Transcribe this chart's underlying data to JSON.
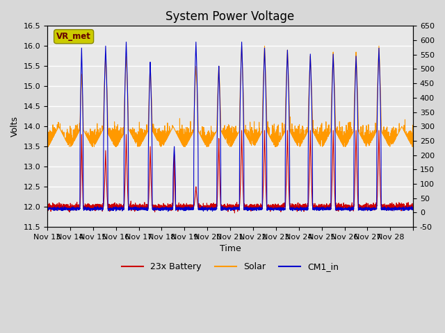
{
  "title": "System Power Voltage",
  "xlabel": "Time",
  "ylabel": "Volts",
  "ylim_left": [
    11.5,
    16.5
  ],
  "ylim_right": [
    -50,
    650
  ],
  "yticks_left": [
    11.5,
    12.0,
    12.5,
    13.0,
    13.5,
    14.0,
    14.5,
    15.0,
    15.5,
    16.0,
    16.5
  ],
  "yticks_right": [
    -50,
    0,
    50,
    100,
    150,
    200,
    250,
    300,
    350,
    400,
    450,
    500,
    550,
    600,
    650
  ],
  "xtick_positions": [
    0,
    1,
    2,
    3,
    4,
    5,
    6,
    7,
    8,
    9,
    10,
    11,
    12,
    13,
    14,
    15,
    16
  ],
  "xtick_labels": [
    "Nov 13",
    "Nov 14",
    "Nov 15",
    "Nov 16",
    "Nov 17",
    "Nov 18",
    "Nov 19",
    "Nov 20",
    "Nov 21",
    "Nov 22",
    "Nov 23",
    "Nov 24",
    "Nov 25",
    "Nov 26",
    "Nov 27",
    "Nov 28",
    ""
  ],
  "bg_color": "#d8d8d8",
  "plot_bg_color": "#e8e8e8",
  "legend_colors": [
    "#cc0000",
    "#ff9900",
    "#0000cc"
  ],
  "legend_entries": [
    "23x Battery",
    "Solar",
    "CM1_in"
  ],
  "vr_met_box_color": "#cccc00",
  "vr_met_text_color": "#660000",
  "title_fontsize": 12,
  "label_fontsize": 9,
  "tick_fontsize": 8,
  "n_days": 16,
  "ppd": 200,
  "spike_days": [
    [
      1,
      0.5,
      13.8,
      15.95,
      15.3,
      0.15
    ],
    [
      2,
      0.55,
      13.4,
      16.0,
      15.8,
      0.2
    ],
    [
      3,
      0.45,
      13.8,
      16.1,
      15.75,
      0.2
    ],
    [
      4,
      0.5,
      13.5,
      15.6,
      15.5,
      0.18
    ],
    [
      5,
      0.55,
      13.3,
      13.5,
      13.5,
      0.12
    ],
    [
      6,
      0.5,
      12.5,
      16.1,
      15.5,
      0.2
    ],
    [
      7,
      0.5,
      13.7,
      15.5,
      15.5,
      0.18
    ],
    [
      8,
      0.5,
      13.9,
      16.1,
      16.0,
      0.2
    ],
    [
      9,
      0.5,
      13.9,
      15.95,
      16.0,
      0.2
    ],
    [
      10,
      0.5,
      13.9,
      15.9,
      15.9,
      0.2
    ],
    [
      11,
      0.5,
      13.9,
      15.8,
      15.75,
      0.2
    ],
    [
      12,
      0.5,
      13.9,
      15.8,
      15.85,
      0.2
    ],
    [
      13,
      0.5,
      13.9,
      15.75,
      15.85,
      0.2
    ],
    [
      14,
      0.5,
      13.9,
      15.95,
      16.0,
      0.2
    ]
  ]
}
